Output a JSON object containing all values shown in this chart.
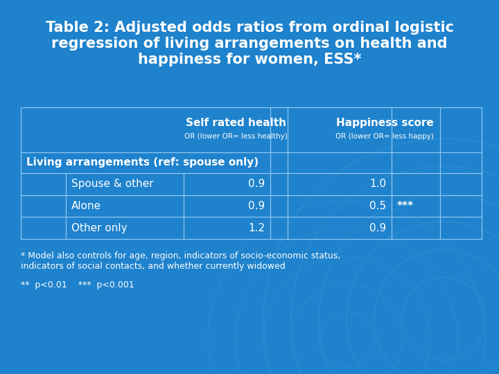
{
  "title": "Table 2: Adjusted odds ratios from ordinal logistic\nregression of living arrangements on health and\nhappiness for women, ESS*",
  "bg_color": "#1e82cc",
  "text_color": "#ffffff",
  "border_color": "#90c8f0",
  "col_header_main": [
    "Self rated health",
    "Happiness score"
  ],
  "col_header_sub": [
    "OR (lower OR= less healthy)",
    "OR (lower OR= less happy)"
  ],
  "row_group": "Living arrangements (ref: spouse only)",
  "rows": [
    {
      "label": "Spouse & other",
      "self_rated": "0.9",
      "happiness": "1.0",
      "happy_sig": ""
    },
    {
      "label": "Alone",
      "self_rated": "0.9",
      "happiness": "0.5",
      "happy_sig": "***"
    },
    {
      "label": "Other only",
      "self_rated": "1.2",
      "happiness": "0.9",
      "happy_sig": ""
    }
  ],
  "footnote1": "* Model also controls for age, region, indicators of socio-economic status,\nindicators of social contacts, and whether currently widowed",
  "footnote2": "**  p<0.01    ***  p<0.001",
  "title_fontsize": 15,
  "header_fontsize": 11,
  "cell_fontsize": 11,
  "footnote_fontsize": 9
}
